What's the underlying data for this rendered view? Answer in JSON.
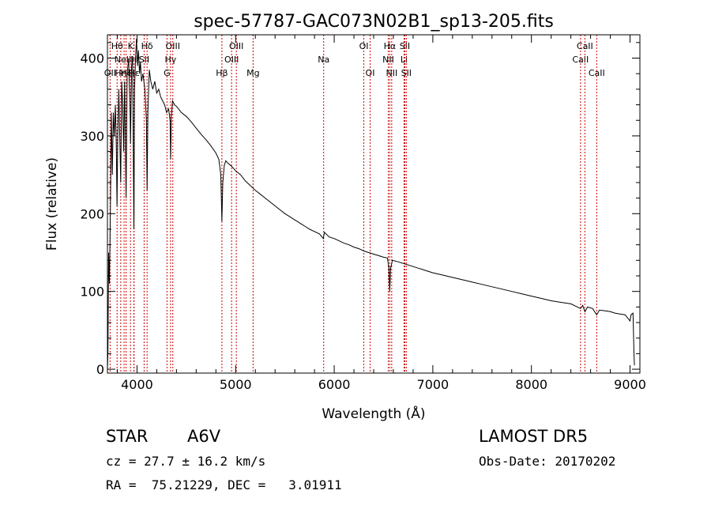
{
  "chart_data": {
    "type": "line",
    "title": "spec-57787-GAC073N02B1_sp13-205.fits",
    "xlabel": "Wavelength (Å)",
    "ylabel": "Flux (relative)",
    "xlim": [
      3700,
      9100
    ],
    "ylim": [
      -5,
      430
    ],
    "xticks": [
      4000,
      5000,
      6000,
      7000,
      8000,
      9000
    ],
    "xtick_labels": [
      "4000",
      "5000",
      "6000",
      "7000",
      "8000",
      "9000"
    ],
    "yticks": [
      0,
      100,
      200,
      300,
      400
    ],
    "ytick_labels": [
      "0",
      "100",
      "200",
      "300",
      "400"
    ],
    "grid": false,
    "line_color": "#000000",
    "marker_color": "#cc0000",
    "series": [
      {
        "points": [
          [
            3700,
            0
          ],
          [
            3705,
            20
          ],
          [
            3712,
            150
          ],
          [
            3720,
            110
          ],
          [
            3730,
            200
          ],
          [
            3740,
            330
          ],
          [
            3750,
            250
          ],
          [
            3760,
            330
          ],
          [
            3770,
            300
          ],
          [
            3780,
            340
          ],
          [
            3790,
            290
          ],
          [
            3797,
            210
          ],
          [
            3805,
            300
          ],
          [
            3815,
            360
          ],
          [
            3825,
            300
          ],
          [
            3835,
            240
          ],
          [
            3845,
            370
          ],
          [
            3855,
            340
          ],
          [
            3865,
            280
          ],
          [
            3875,
            370
          ],
          [
            3889,
            220
          ],
          [
            3900,
            380
          ],
          [
            3915,
            400
          ],
          [
            3930,
            330
          ],
          [
            3934,
            290
          ],
          [
            3945,
            390
          ],
          [
            3955,
            400
          ],
          [
            3968,
            180
          ],
          [
            3975,
            360
          ],
          [
            3985,
            400
          ],
          [
            3995,
            425
          ],
          [
            4005,
            390
          ],
          [
            4015,
            410
          ],
          [
            4025,
            380
          ],
          [
            4035,
            395
          ],
          [
            4045,
            370
          ],
          [
            4060,
            380
          ],
          [
            4080,
            360
          ],
          [
            4095,
            320
          ],
          [
            4102,
            230
          ],
          [
            4110,
            330
          ],
          [
            4125,
            385
          ],
          [
            4140,
            370
          ],
          [
            4160,
            360
          ],
          [
            4180,
            370
          ],
          [
            4200,
            355
          ],
          [
            4220,
            360
          ],
          [
            4240,
            350
          ],
          [
            4260,
            345
          ],
          [
            4280,
            340
          ],
          [
            4300,
            330
          ],
          [
            4320,
            335
          ],
          [
            4335,
            320
          ],
          [
            4341,
            270
          ],
          [
            4348,
            325
          ],
          [
            4360,
            345
          ],
          [
            4380,
            340
          ],
          [
            4400,
            338
          ],
          [
            4450,
            330
          ],
          [
            4500,
            325
          ],
          [
            4550,
            318
          ],
          [
            4600,
            310
          ],
          [
            4650,
            302
          ],
          [
            4700,
            295
          ],
          [
            4750,
            287
          ],
          [
            4800,
            278
          ],
          [
            4830,
            270
          ],
          [
            4850,
            250
          ],
          [
            4861,
            190
          ],
          [
            4870,
            240
          ],
          [
            4885,
            262
          ],
          [
            4900,
            268
          ],
          [
            4920,
            265
          ],
          [
            4950,
            262
          ],
          [
            4980,
            258
          ],
          [
            5000,
            255
          ],
          [
            5050,
            250
          ],
          [
            5100,
            242
          ],
          [
            5150,
            236
          ],
          [
            5200,
            230
          ],
          [
            5250,
            225
          ],
          [
            5300,
            220
          ],
          [
            5350,
            215
          ],
          [
            5400,
            210
          ],
          [
            5450,
            205
          ],
          [
            5500,
            200
          ],
          [
            5550,
            196
          ],
          [
            5600,
            192
          ],
          [
            5650,
            188
          ],
          [
            5700,
            184
          ],
          [
            5750,
            180
          ],
          [
            5800,
            177
          ],
          [
            5850,
            174
          ],
          [
            5890,
            168
          ],
          [
            5900,
            176
          ],
          [
            5950,
            170
          ],
          [
            6000,
            168
          ],
          [
            6050,
            165
          ],
          [
            6100,
            162
          ],
          [
            6150,
            160
          ],
          [
            6200,
            157
          ],
          [
            6250,
            155
          ],
          [
            6300,
            152
          ],
          [
            6350,
            150
          ],
          [
            6400,
            148
          ],
          [
            6450,
            146
          ],
          [
            6500,
            144
          ],
          [
            6540,
            143
          ],
          [
            6555,
            130
          ],
          [
            6563,
            100
          ],
          [
            6572,
            130
          ],
          [
            6590,
            140
          ],
          [
            6650,
            138
          ],
          [
            6700,
            136
          ],
          [
            6750,
            134
          ],
          [
            6800,
            132
          ],
          [
            6850,
            130
          ],
          [
            6900,
            128
          ],
          [
            6950,
            126
          ],
          [
            7000,
            124
          ],
          [
            7100,
            121
          ],
          [
            7200,
            118
          ],
          [
            7300,
            115
          ],
          [
            7400,
            112
          ],
          [
            7500,
            109
          ],
          [
            7600,
            106
          ],
          [
            7700,
            103
          ],
          [
            7800,
            100
          ],
          [
            7900,
            97
          ],
          [
            8000,
            94
          ],
          [
            8100,
            91
          ],
          [
            8200,
            88
          ],
          [
            8300,
            86
          ],
          [
            8400,
            84
          ],
          [
            8498,
            78
          ],
          [
            8520,
            82
          ],
          [
            8542,
            74
          ],
          [
            8570,
            80
          ],
          [
            8620,
            78
          ],
          [
            8662,
            70
          ],
          [
            8690,
            76
          ],
          [
            8750,
            75
          ],
          [
            8800,
            74
          ],
          [
            8850,
            72
          ],
          [
            8900,
            71
          ],
          [
            8950,
            70
          ],
          [
            9000,
            62
          ],
          [
            9010,
            70
          ],
          [
            9030,
            72
          ],
          [
            9040,
            20
          ],
          [
            9045,
            5
          ]
        ]
      }
    ],
    "line_markers": [
      {
        "wl": 3727,
        "label": "OII",
        "row": 3
      },
      {
        "wl": 3798,
        "label": "Hθ",
        "row": 1
      },
      {
        "wl": 3835,
        "label": "Hη",
        "row": 3
      },
      {
        "wl": 3869,
        "label": "NeIII",
        "row": 2
      },
      {
        "wl": 3889,
        "label": "Hζ",
        "row": 3
      },
      {
        "wl": 3934,
        "label": "K",
        "row": 1
      },
      {
        "wl": 3968,
        "label": "H",
        "row": 2
      },
      {
        "wl": 3970,
        "label": "Hε",
        "row": 3
      },
      {
        "wl": 4072,
        "label": "SII",
        "row": 2
      },
      {
        "wl": 4102,
        "label": "Hδ",
        "row": 1
      },
      {
        "wl": 4304,
        "label": "G",
        "row": 3
      },
      {
        "wl": 4340,
        "label": "Hγ",
        "row": 2
      },
      {
        "wl": 4363,
        "label": "OIII",
        "row": 1
      },
      {
        "wl": 4861,
        "label": "Hβ",
        "row": 3
      },
      {
        "wl": 4959,
        "label": "OIII",
        "row": 2
      },
      {
        "wl": 5007,
        "label": "OIII",
        "row": 1
      },
      {
        "wl": 5177,
        "label": "Mg",
        "row": 3
      },
      {
        "wl": 5893,
        "label": "Na",
        "row": 2
      },
      {
        "wl": 6300,
        "label": "OI",
        "row": 1
      },
      {
        "wl": 6364,
        "label": "OI",
        "row": 3
      },
      {
        "wl": 6548,
        "label": "NII",
        "row": 2
      },
      {
        "wl": 6563,
        "label": "Hα",
        "row": 1
      },
      {
        "wl": 6583,
        "label": "NII",
        "row": 3
      },
      {
        "wl": 6708,
        "label": "Li",
        "row": 2
      },
      {
        "wl": 6716,
        "label": "SII",
        "row": 1
      },
      {
        "wl": 6731,
        "label": "SII",
        "row": 3
      },
      {
        "wl": 8498,
        "label": "CaII",
        "row": 2
      },
      {
        "wl": 8542,
        "label": "CaII",
        "row": 1
      },
      {
        "wl": 8662,
        "label": "CaII",
        "row": 3
      }
    ]
  },
  "info": {
    "object_type": "STAR",
    "subclass": "A6V",
    "survey": "LAMOST DR5",
    "redshift": "cz = 27.7 ± 16.2 km/s",
    "obs_date": "Obs-Date: 20170202",
    "coords": "RA =  75.21229, DEC =   3.01911"
  }
}
